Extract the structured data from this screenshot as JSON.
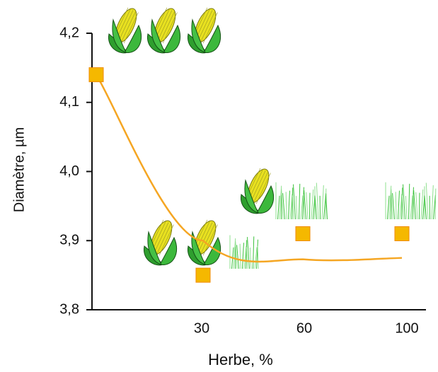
{
  "chart_data": {
    "type": "scatter",
    "x_label": "Herbe, %",
    "y_label": "Diamètre, µm",
    "categories": [
      null,
      "30",
      "60",
      "100"
    ],
    "series": [
      {
        "color": "#f5b800",
        "values": [
          4.14,
          3.85,
          3.91,
          3.91
        ]
      },
      {
        "color": "#f5a623",
        "values": [
          4.14,
          3.9,
          3.873,
          3.875
        ]
      }
    ],
    "ylim": [
      3.8,
      4.2
    ],
    "yticks": [
      {
        "value": 4.2,
        "label": "4,2"
      },
      {
        "value": 4.1,
        "label": "4,1"
      },
      {
        "value": 4.0,
        "label": "4,0"
      },
      {
        "value": 3.9,
        "label": "3,9"
      },
      {
        "value": 3.8,
        "label": "3,8"
      }
    ]
  }
}
